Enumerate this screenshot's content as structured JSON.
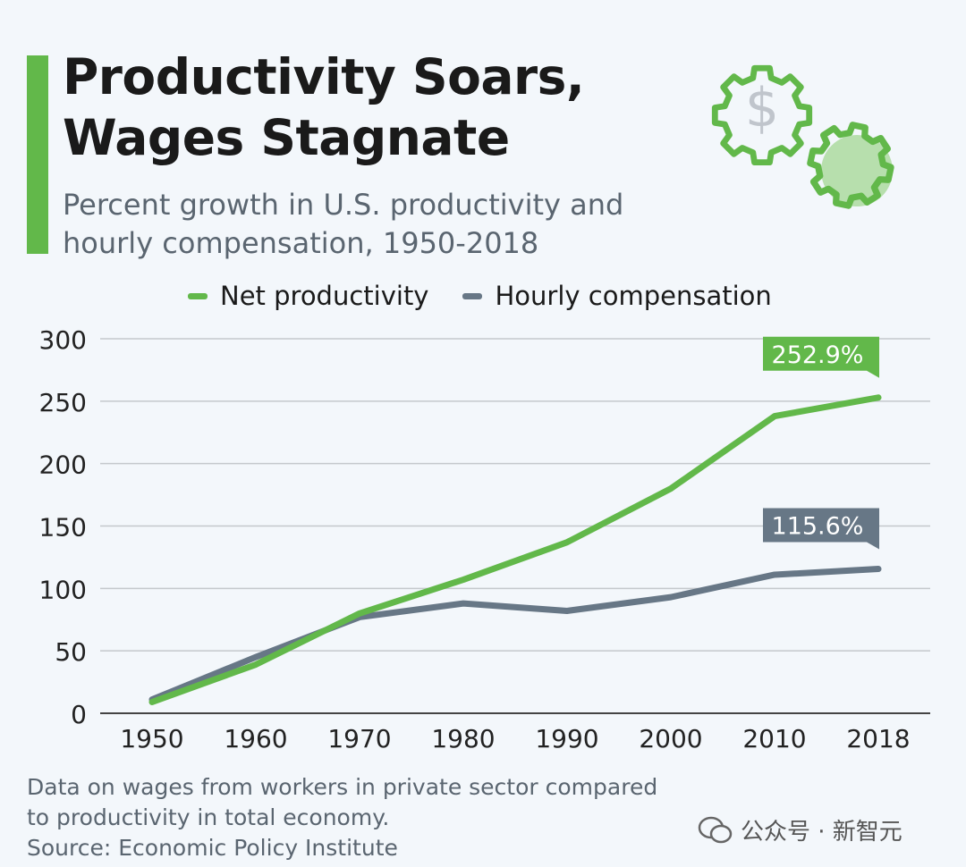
{
  "header": {
    "title_line1": "Productivity Soars,",
    "title_line2": "Wages Stagnate",
    "subtitle_line1": "Percent growth in U.S. productivity and",
    "subtitle_line2": "hourly compensation, 1950-2018",
    "icon": "gears-dollar-icon"
  },
  "colors": {
    "productivity": "#62b84a",
    "compensation": "#677786",
    "background": "#f3f7fb"
  },
  "chart_data": {
    "type": "line",
    "categories": [
      "1950",
      "1960",
      "1970",
      "1980",
      "1990",
      "2000",
      "2010",
      "2018"
    ],
    "series": [
      {
        "name": "Net productivity",
        "values": [
          9,
          39,
          80,
          107,
          137,
          180,
          238,
          252.9
        ],
        "end_label": "252.9%"
      },
      {
        "name": "Hourly compensation",
        "values": [
          11,
          45,
          77,
          88,
          82,
          93,
          111,
          115.6
        ],
        "end_label": "115.6%"
      }
    ],
    "yticks": [
      "0",
      "50",
      "100",
      "150",
      "200",
      "250",
      "300"
    ],
    "ylim": [
      0,
      300
    ],
    "grid": true,
    "legend": "top"
  },
  "footer": {
    "note_line1": "Data on wages from workers in private sector compared",
    "note_line2": "to productivity in total economy.",
    "source": "Source: Economic Policy Institute"
  },
  "watermark": {
    "text": "公众号 · 新智元",
    "icon": "wechat-icon"
  }
}
